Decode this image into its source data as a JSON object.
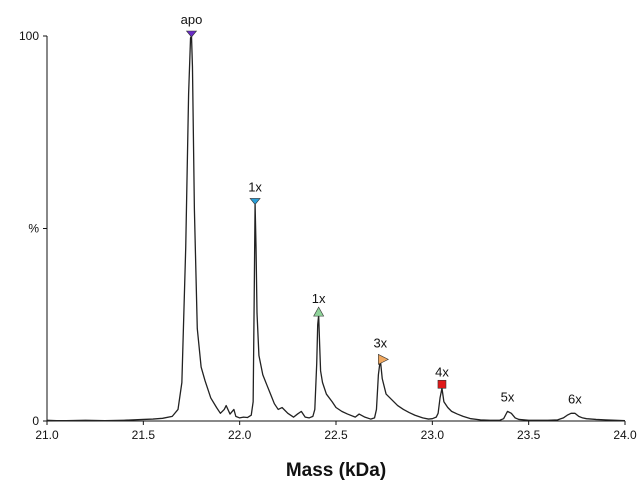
{
  "chart_data": {
    "type": "line",
    "xlabel": "Mass (kDa)",
    "ylabel": "%",
    "xlim": [
      21.0,
      24.0
    ],
    "ylim": [
      0,
      100
    ],
    "x_ticks": [
      "21.0",
      "21.5",
      "22.0",
      "22.5",
      "23.0",
      "23.5",
      "24.0"
    ],
    "y_tick_labels": [
      {
        "value": 0,
        "label": "0"
      },
      {
        "value": 50,
        "label": "%"
      },
      {
        "value": 100,
        "label": "100"
      }
    ],
    "grid": false,
    "legend": "none",
    "series": [
      {
        "x": [
          21.0,
          21.05,
          21.1,
          21.2,
          21.3,
          21.4,
          21.5,
          21.55,
          21.6,
          21.65,
          21.68,
          21.7,
          21.72,
          21.735,
          21.745,
          21.75,
          21.755,
          21.765,
          21.78,
          21.8,
          21.82,
          21.85,
          21.88,
          21.9,
          21.92,
          21.93,
          21.95,
          21.97,
          21.98,
          22.0,
          22.02,
          22.04,
          22.06,
          22.07,
          22.075,
          22.08,
          22.085,
          22.09,
          22.1,
          22.12,
          22.14,
          22.16,
          22.18,
          22.2,
          22.22,
          22.25,
          22.28,
          22.3,
          22.32,
          22.34,
          22.36,
          22.38,
          22.39,
          22.4,
          22.405,
          22.41,
          22.415,
          22.42,
          22.43,
          22.45,
          22.48,
          22.5,
          22.53,
          22.56,
          22.6,
          22.62,
          22.65,
          22.68,
          22.7,
          22.71,
          22.72,
          22.73,
          22.74,
          22.76,
          22.79,
          22.82,
          22.85,
          22.88,
          22.91,
          22.95,
          22.98,
          23.0,
          23.02,
          23.03,
          23.04,
          23.05,
          23.06,
          23.08,
          23.1,
          23.13,
          23.16,
          23.2,
          23.25,
          23.3,
          23.35,
          23.37,
          23.39,
          23.41,
          23.43,
          23.45,
          23.5,
          23.55,
          23.6,
          23.65,
          23.68,
          23.7,
          23.72,
          23.74,
          23.76,
          23.78,
          23.8,
          23.85,
          23.9,
          23.95,
          24.0
        ],
        "y": [
          0.2,
          0.1,
          0.1,
          0.2,
          0.1,
          0.2,
          0.4,
          0.5,
          0.7,
          1.2,
          3.0,
          10.0,
          45.0,
          85.0,
          99.5,
          100.0,
          92.0,
          55.0,
          24.0,
          14.0,
          10.5,
          6.0,
          3.5,
          2.0,
          3.0,
          4.0,
          1.8,
          3.0,
          1.2,
          0.8,
          1.0,
          0.9,
          1.5,
          5.0,
          30.0,
          56.5,
          45.0,
          28.0,
          17.0,
          12.0,
          9.5,
          7.0,
          4.5,
          3.0,
          3.5,
          2.0,
          1.0,
          1.8,
          2.5,
          1.0,
          0.8,
          1.2,
          3.0,
          15.0,
          25.0,
          27.5,
          20.0,
          13.0,
          10.0,
          7.0,
          5.0,
          3.5,
          2.5,
          1.8,
          1.0,
          1.8,
          1.0,
          0.5,
          0.8,
          3.0,
          12.0,
          16.0,
          11.0,
          7.0,
          5.5,
          4.0,
          3.0,
          2.2,
          1.5,
          0.8,
          0.5,
          0.6,
          1.0,
          2.0,
          6.0,
          8.5,
          5.0,
          3.5,
          2.5,
          1.8,
          1.2,
          0.6,
          0.3,
          0.2,
          0.2,
          0.6,
          2.5,
          2.0,
          0.8,
          0.4,
          0.2,
          0.2,
          0.2,
          0.3,
          0.8,
          1.5,
          2.0,
          2.0,
          1.2,
          0.8,
          0.6,
          0.4,
          0.3,
          0.2,
          0.1
        ]
      }
    ],
    "annotations": [
      {
        "text": "apo",
        "x": 21.75,
        "y": 100,
        "marker": "down-triangle",
        "color": "#6a2cc7"
      },
      {
        "text": "1x",
        "x": 22.08,
        "y": 56.5,
        "marker": "down-triangle",
        "color": "#2a9fd8"
      },
      {
        "text": "1x",
        "x": 22.41,
        "y": 27.5,
        "marker": "up-triangle",
        "color": "#8fd39a"
      },
      {
        "text": "3x",
        "x": 22.73,
        "y": 16,
        "marker": "right-triangle",
        "color": "#f0a860"
      },
      {
        "text": "4x",
        "x": 23.05,
        "y": 8.5,
        "marker": "square",
        "color": "#e01818"
      },
      {
        "text": "5x",
        "x": 23.39,
        "y": 2.5,
        "marker": "none",
        "color": ""
      },
      {
        "text": "6x",
        "x": 23.74,
        "y": 2.0,
        "marker": "none",
        "color": ""
      }
    ]
  }
}
